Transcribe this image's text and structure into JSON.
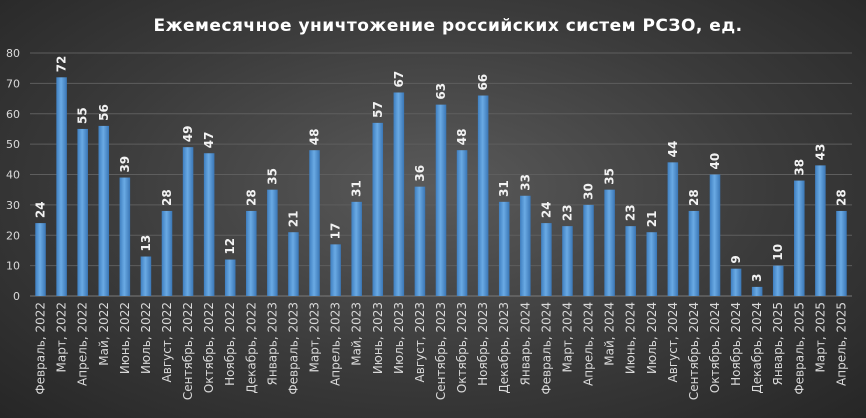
{
  "chart_data": {
    "type": "bar",
    "title": "Ежемесячное  уничтожение  российских  систем РСЗО,  ед.",
    "categories": [
      "Февраль, 2022",
      "Март, 2022",
      "Апрель, 2022",
      "Май, 2022",
      "Июнь, 2022",
      "Июль, 2022",
      "Август, 2022",
      "Сентябрь, 2022",
      "Октябрь, 2022",
      "Ноябрь, 2022",
      "Декабрь, 2022",
      "Январь, 2023",
      "Февраль, 2023",
      "Март, 2023",
      "Апрель, 2023",
      "Май, 2023",
      "Июнь, 2023",
      "Июль, 2023",
      "Август, 2023",
      "Сентябрь, 2023",
      "Октябрь, 2023",
      "Ноябрь, 2023",
      "Декабрь, 2023",
      "Январь, 2024",
      "Февраль, 2024",
      "Март, 2024",
      "Апрель, 2024",
      "Май, 2024",
      "Июнь, 2024",
      "Июль, 2024",
      "Август, 2024",
      "Сентябрь, 2024",
      "Октябрь, 2024",
      "Ноябрь, 2024",
      "Декабрь, 2024",
      "Январь, 2025",
      "Февраль, 2025",
      "Март, 2025",
      "Апрель, 2025"
    ],
    "values": [
      24,
      72,
      55,
      56,
      39,
      13,
      28,
      49,
      47,
      12,
      28,
      35,
      21,
      48,
      17,
      31,
      57,
      67,
      36,
      63,
      48,
      66,
      31,
      33,
      24,
      23,
      30,
      35,
      23,
      21,
      44,
      28,
      40,
      9,
      3,
      10,
      38,
      43,
      28
    ],
    "ylim": [
      0,
      80
    ],
    "yticks": [
      0,
      10,
      20,
      30,
      40,
      50,
      60,
      70,
      80
    ],
    "grid": true,
    "bar_color": "#5b9bd5",
    "background": "#3b3b3b"
  }
}
